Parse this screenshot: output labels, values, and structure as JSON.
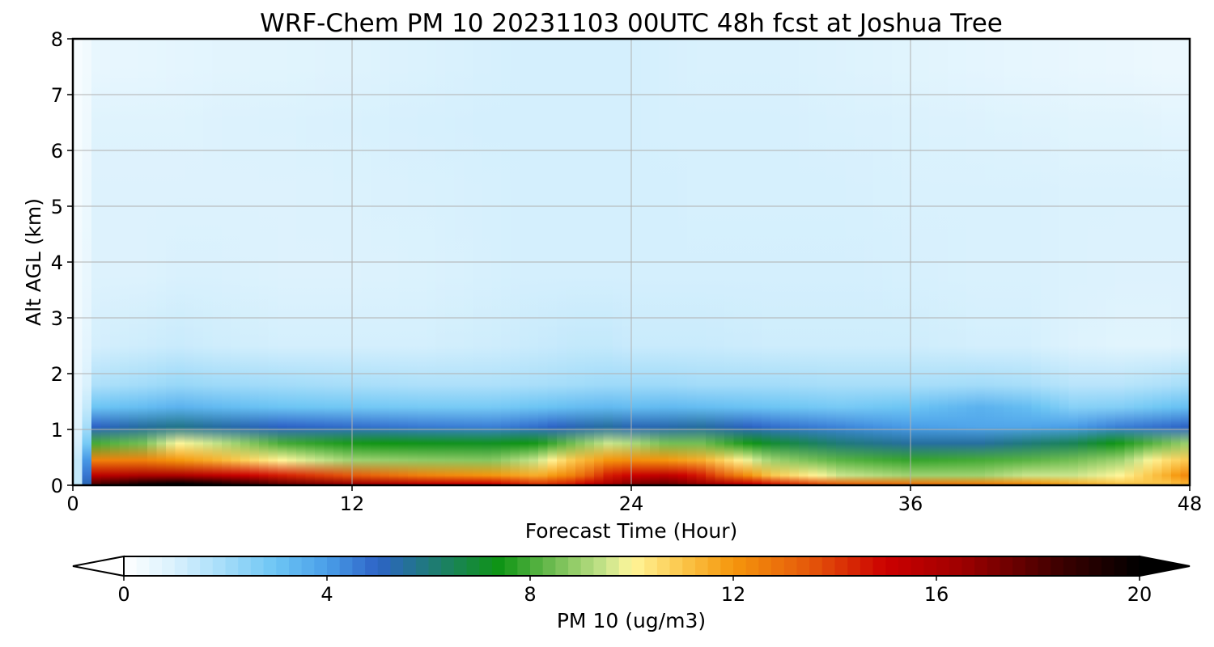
{
  "chart_data": {
    "type": "heatmap",
    "title": "WRF-Chem PM 10  20231103 00UTC 48h fcst at Joshua Tree",
    "xlabel": "Forecast Time (Hour)",
    "ylabel": "Alt AGL (km)",
    "xlim": [
      0,
      48
    ],
    "ylim": [
      0,
      8
    ],
    "x_ticks": [
      "0",
      "12",
      "24",
      "36",
      "48"
    ],
    "y_ticks": [
      "0",
      "1",
      "2",
      "3",
      "4",
      "5",
      "6",
      "7",
      "8"
    ],
    "grid": true,
    "colorbar": {
      "label": "PM 10  (ug/m3)",
      "range": [
        0,
        20
      ],
      "ticks": [
        "0",
        "4",
        "8",
        "12",
        "16",
        "20"
      ],
      "extend": "both",
      "stops": [
        {
          "value": 0,
          "color": "#ffffff"
        },
        {
          "value": 1,
          "color": "#d9f1fd"
        },
        {
          "value": 2,
          "color": "#a3dcf9"
        },
        {
          "value": 3,
          "color": "#6cc5f4"
        },
        {
          "value": 4,
          "color": "#4a9ee8"
        },
        {
          "value": 5,
          "color": "#2d63c6"
        },
        {
          "value": 6,
          "color": "#1f7a7a"
        },
        {
          "value": 7.4,
          "color": "#0f9414"
        },
        {
          "value": 8.6,
          "color": "#7cc25a"
        },
        {
          "value": 9.5,
          "color": "#c9e58c"
        },
        {
          "value": 10,
          "color": "#fff69a"
        },
        {
          "value": 11,
          "color": "#fbc64a"
        },
        {
          "value": 12,
          "color": "#f5960c"
        },
        {
          "value": 13.5,
          "color": "#e5580a"
        },
        {
          "value": 15,
          "color": "#cc0000"
        },
        {
          "value": 16.5,
          "color": "#9e0000"
        },
        {
          "value": 18.5,
          "color": "#3a0000"
        },
        {
          "value": 20,
          "color": "#000000"
        }
      ]
    },
    "field": {
      "x_hours": [
        0,
        0.5,
        1,
        3,
        4.5,
        6,
        9,
        12,
        15,
        18,
        20,
        21.5,
        23,
        24,
        25.5,
        27,
        30,
        33,
        36,
        39,
        41,
        43,
        45,
        47,
        48
      ],
      "layers": [
        {
          "top_km": 0.05,
          "values": [
            1,
            2,
            18,
            19.5,
            20,
            19.5,
            17.5,
            16.5,
            15.5,
            15,
            14,
            14.5,
            16,
            17,
            17.5,
            16.5,
            14.5,
            13.2,
            12.8,
            12.5,
            12.2,
            11.5,
            11,
            11,
            11.5
          ]
        },
        {
          "top_km": 0.3,
          "values": [
            1,
            2,
            15.5,
            16,
            16,
            15.5,
            14.5,
            13.5,
            12.5,
            12,
            11.5,
            12.5,
            14.5,
            15,
            15.5,
            14.5,
            11,
            9.5,
            9,
            9,
            9.5,
            9.5,
            10,
            11.5,
            12.5
          ]
        },
        {
          "top_km": 0.6,
          "values": [
            1,
            2,
            12.5,
            12.5,
            12,
            11.5,
            10,
            9,
            8.8,
            8.7,
            9.5,
            11,
            12,
            12.2,
            12,
            11.5,
            9,
            8.2,
            7.8,
            8,
            8.2,
            8.5,
            9,
            10.5,
            11
          ]
        },
        {
          "top_km": 0.9,
          "values": [
            0.8,
            1.5,
            8,
            8.5,
            10,
            9.5,
            8,
            7.5,
            7.3,
            7.2,
            7.5,
            8.5,
            9.5,
            9.2,
            8.5,
            8.5,
            7,
            6,
            5.5,
            5.5,
            6,
            6.5,
            7.5,
            8.5,
            9
          ]
        },
        {
          "top_km": 1.2,
          "values": [
            0.6,
            1.2,
            5,
            5.5,
            5.8,
            5.5,
            5,
            4.8,
            4.6,
            4.5,
            4.8,
            5.2,
            5.5,
            5.2,
            5.3,
            5.5,
            4.8,
            4.4,
            4,
            3.8,
            3.8,
            4,
            4.5,
            4.8,
            5
          ]
        },
        {
          "top_km": 1.6,
          "values": [
            0.5,
            1,
            3,
            3.2,
            3.5,
            3.3,
            3,
            2.9,
            2.8,
            2.8,
            3,
            3.2,
            3.3,
            3.2,
            3.3,
            3.2,
            3,
            2.8,
            3,
            3.5,
            3.2,
            2.5,
            2.6,
            3,
            3.2
          ]
        },
        {
          "top_km": 2.0,
          "values": [
            0.4,
            0.8,
            1.8,
            2,
            2.2,
            2.1,
            2,
            1.9,
            1.8,
            1.8,
            1.9,
            2,
            2.1,
            2.1,
            2.1,
            2,
            2,
            1.9,
            1.9,
            2,
            1.9,
            1.6,
            1.6,
            1.8,
            2
          ]
        },
        {
          "top_km": 3.0,
          "values": [
            0.3,
            0.6,
            1.1,
            1.2,
            1.3,
            1.2,
            1.1,
            1.1,
            1.1,
            1.2,
            1.3,
            1.4,
            1.4,
            1.3,
            1.3,
            1.3,
            1.2,
            1.2,
            1.2,
            1.1,
            1.1,
            0.9,
            0.8,
            0.8,
            0.9
          ]
        },
        {
          "top_km": 4.5,
          "values": [
            0.3,
            0.5,
            0.9,
            0.9,
            1,
            1,
            0.9,
            0.9,
            0.95,
            1.05,
            1.1,
            1.1,
            1.1,
            1.1,
            1.1,
            1.1,
            1.1,
            1.1,
            1.05,
            1,
            1,
            0.95,
            0.9,
            0.9,
            0.9
          ]
        },
        {
          "top_km": 6.0,
          "values": [
            0.2,
            0.4,
            0.9,
            0.9,
            0.9,
            0.9,
            0.9,
            0.95,
            1,
            1.05,
            1.1,
            1.1,
            1.1,
            1.1,
            1.1,
            1.05,
            1.05,
            1.05,
            1,
            1,
            1,
            0.95,
            0.95,
            0.95,
            0.95
          ]
        },
        {
          "top_km": 7.0,
          "values": [
            0.2,
            0.3,
            0.85,
            0.85,
            0.85,
            0.9,
            0.95,
            1,
            1.05,
            1.1,
            1.1,
            1.1,
            1.1,
            1.1,
            1.05,
            1.05,
            1.05,
            1,
            0.95,
            0.9,
            0.85,
            0.8,
            0.8,
            0.75,
            0.75
          ]
        },
        {
          "top_km": 8.0,
          "values": [
            0.2,
            0.3,
            0.6,
            0.65,
            0.7,
            0.75,
            0.8,
            0.85,
            0.95,
            1.05,
            1.1,
            1.1,
            1.1,
            1.1,
            1.05,
            1,
            1,
            0.9,
            0.8,
            0.7,
            0.65,
            0.6,
            0.55,
            0.5,
            0.5
          ]
        }
      ]
    }
  }
}
